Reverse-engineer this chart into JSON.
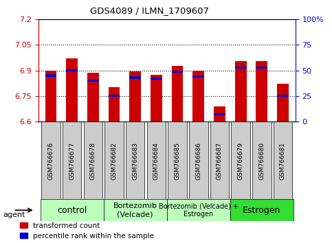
{
  "title": "GDS4089 / ILMN_1709607",
  "samples": [
    "GSM766676",
    "GSM766677",
    "GSM766678",
    "GSM766682",
    "GSM766683",
    "GSM766684",
    "GSM766685",
    "GSM766686",
    "GSM766687",
    "GSM766679",
    "GSM766680",
    "GSM766681"
  ],
  "transformed_count": [
    6.9,
    6.97,
    6.885,
    6.8,
    6.895,
    6.875,
    6.925,
    6.9,
    6.69,
    6.955,
    6.955,
    6.82
  ],
  "percentile_rank": [
    45,
    50,
    40,
    25,
    43,
    42,
    49,
    44,
    7,
    53,
    53,
    25
  ],
  "ymin": 6.6,
  "ymax": 7.2,
  "yticks": [
    6.6,
    6.75,
    6.9,
    7.05,
    7.2
  ],
  "ytick_labels": [
    "6.6",
    "6.75",
    "6.9",
    "7.05",
    "7.2"
  ],
  "right_yticks": [
    0,
    25,
    50,
    75,
    100
  ],
  "right_ytick_labels": [
    "0",
    "25",
    "50",
    "75",
    "100%"
  ],
  "group_boundaries": [
    {
      "start": 0,
      "end": 3,
      "label": "control",
      "color": "#bbffbb",
      "fontsize": 9
    },
    {
      "start": 3,
      "end": 6,
      "label": "Bortezomib\n(Velcade)",
      "color": "#bbffbb",
      "fontsize": 8
    },
    {
      "start": 6,
      "end": 9,
      "label": "Bortezomib (Velcade) +\nEstrogen",
      "color": "#bbffbb",
      "fontsize": 7
    },
    {
      "start": 9,
      "end": 12,
      "label": "Estrogen",
      "color": "#33dd33",
      "fontsize": 9
    }
  ],
  "bar_color": "#cc0000",
  "percentile_color": "#0000cc",
  "bar_width": 0.55,
  "bar_bottom": 6.6,
  "grid_yticks": [
    6.75,
    6.9,
    7.05
  ],
  "legend_labels": [
    "transformed count",
    "percentile rank within the sample"
  ],
  "xlabel_agent": "agent"
}
